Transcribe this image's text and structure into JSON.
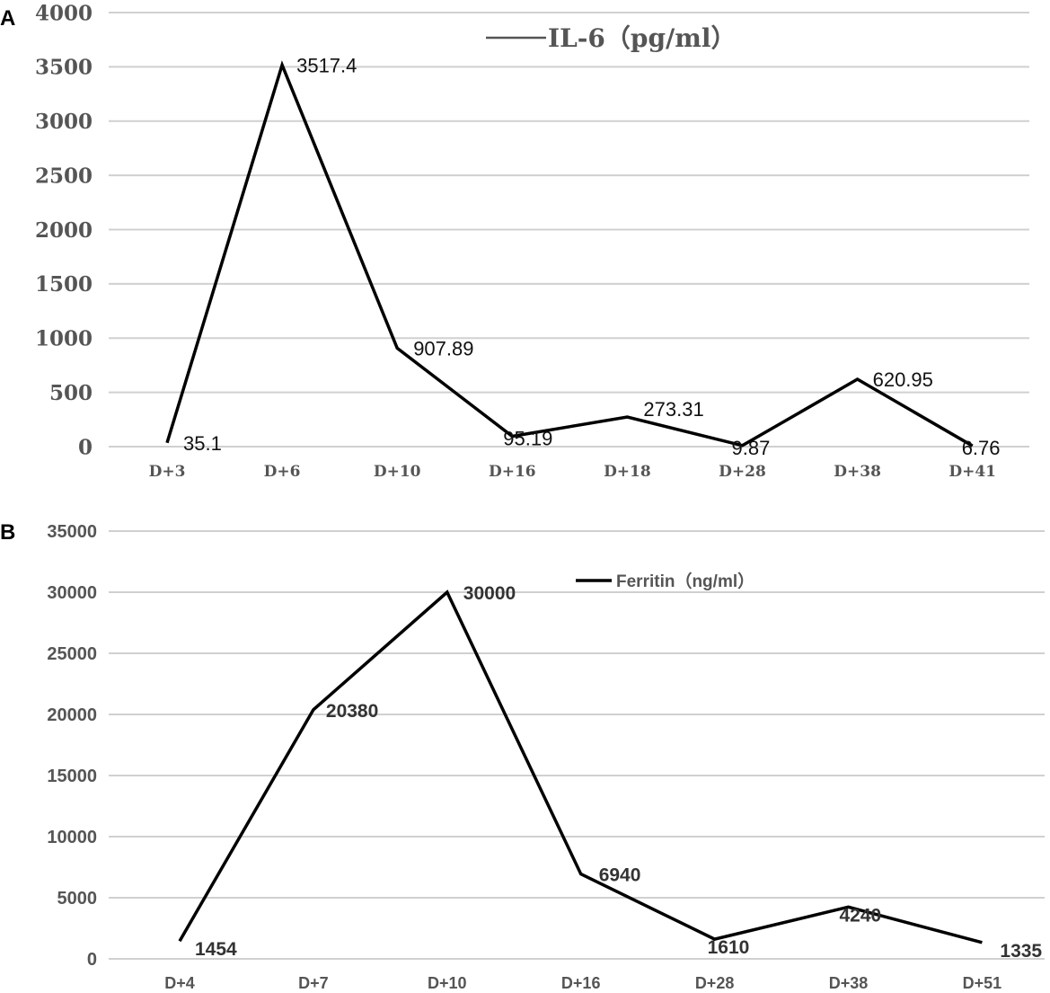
{
  "chart_data": [
    {
      "panel": "A",
      "type": "line",
      "categories": [
        "D+3",
        "D+6",
        "D+10",
        "D+16",
        "D+18",
        "D+28",
        "D+38",
        "D+41"
      ],
      "series": [
        {
          "name": "IL-6（pg/ml）",
          "values": [
            35.1,
            3517.4,
            907.89,
            95.19,
            273.31,
            9.87,
            620.95,
            6.76
          ]
        }
      ],
      "data_labels": [
        "35.1",
        "3517.4",
        "907.89",
        "95.19",
        "273.31",
        "9.87",
        "620.95",
        "6.76"
      ],
      "ylim": [
        0,
        4000
      ],
      "yticks": [
        0,
        500,
        1000,
        1500,
        2000,
        2500,
        3000,
        3500,
        4000
      ],
      "grid": true,
      "legend": "top-center"
    },
    {
      "panel": "B",
      "type": "line",
      "categories": [
        "D+4",
        "D+7",
        "D+10",
        "D+16",
        "D+28",
        "D+38",
        "D+51"
      ],
      "series": [
        {
          "name": "Ferritin（ng/ml）",
          "values": [
            1454,
            20380,
            30000,
            6940,
            1610,
            4240,
            1335
          ]
        }
      ],
      "data_labels": [
        "1454",
        "20380",
        "30000",
        "6940",
        "1610",
        "4240",
        "1335"
      ],
      "ylim": [
        0,
        35000
      ],
      "yticks": [
        0,
        5000,
        10000,
        15000,
        20000,
        25000,
        30000,
        35000
      ],
      "grid": true,
      "legend": "top-center"
    }
  ],
  "colors": {
    "line": "#000000",
    "grid": "#d0d0d0",
    "tick_text": "#555555"
  }
}
